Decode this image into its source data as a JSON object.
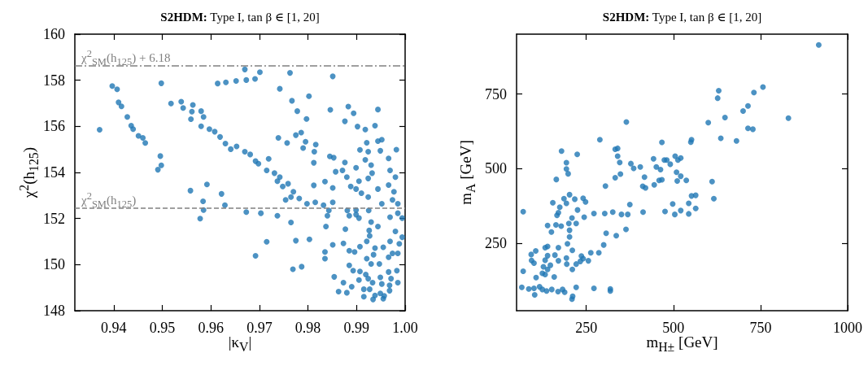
{
  "chart_data": [
    {
      "type": "scatter",
      "title": "S2HDM: Type I,  tan β ∈ [1, 20]",
      "xlabel": "|κ$_{V}$|",
      "ylabel": "χ$^{2}$(h$_{125}$)",
      "xlim": [
        0.932,
        1.0
      ],
      "ylim": [
        148,
        160
      ],
      "xticks": [
        0.94,
        0.95,
        0.96,
        0.97,
        0.98,
        0.99,
        {
          "value": 1.0,
          "label": "1.00"
        }
      ],
      "yticks": [
        148,
        150,
        152,
        154,
        156,
        158,
        160
      ],
      "marker": "circle",
      "ref_lines": [
        {
          "axis": "y",
          "value": 158.63,
          "label": "χ$^{2}$$_{SM}$(h$_{125}$) + 6.18",
          "color": "#808080",
          "line_style": "dashdot"
        },
        {
          "axis": "y",
          "value": 152.45,
          "label": "χ$^{2}$$_{SM}$(h$_{125}$)",
          "color": "#808080",
          "line_style": "dashed"
        }
      ],
      "series": [
        {
          "color": "#1f77b4",
          "x": [
            0.9371,
            0.9397,
            0.9407,
            0.941,
            0.9416,
            0.9428,
            0.9436,
            0.944,
            0.9451,
            0.946,
            0.9465,
            0.9496,
            0.9491,
            0.9498,
            0.9498,
            0.9558,
            0.9578,
            0.9584,
            0.9592,
            0.9585,
            0.9622,
            0.9629,
            0.9518,
            0.9539,
            0.9543,
            0.9559,
            0.9563,
            0.9561,
            0.958,
            0.9585,
            0.958,
            0.9597,
            0.9608,
            0.9619,
            0.963,
            0.9641,
            0.9653,
            0.967,
            0.9681,
            0.9692,
            0.9698,
            0.9715,
            0.9731,
            0.9742,
            0.9737,
            0.9748,
            0.9759,
            0.977,
            0.9782,
            0.9798,
            0.9815,
            0.9832,
            0.9843,
            0.9754,
            0.9765,
            0.9614,
            0.9631,
            0.9652,
            0.967,
            0.9673,
            0.9691,
            0.9701,
            0.9763,
            0.9851,
            0.9742,
            0.9767,
            0.9802,
            0.9778,
            0.9797,
            0.9786,
            0.9775,
            0.9739,
            0.9757,
            0.9795,
            0.979,
            0.9816,
            0.9813,
            0.9846,
            0.9845,
            0.9853,
            0.9812,
            0.9719,
            0.9883,
            0.9894,
            0.9876,
            0.9902,
            0.9918,
            0.9944,
            0.9938,
            0.9921,
            0.9944,
            0.9952,
            0.9907,
            0.9924,
            0.9949,
            0.9982,
            0.9918,
            0.993,
            0.9932,
            0.9924,
            0.9966,
            0.9969,
            0.9876,
            0.9899,
            0.9857,
            0.9871,
            0.988,
            0.9835,
            0.9851,
            0.9812,
            0.9905,
            0.9888,
            0.9899,
            0.991,
            0.9924,
            0.9944,
            0.9966,
            0.998,
            0.9977,
            0.9974,
            0.9985,
            0.9985,
            0.9952,
            0.9925,
            0.9899,
            0.9881,
            0.9851,
            0.984,
            0.9837,
            0.9885,
            0.9899,
            0.9905,
            0.9969,
            0.9994,
            0.993,
            0.9944,
            0.9926,
            0.998,
            0.9877,
            0.9927,
            0.9921,
            0.9969,
            0.9988,
            0.9873,
            0.9851,
            0.9835,
            0.9835,
            0.9885,
            0.9896,
            0.9907,
            0.9921,
            0.9938,
            0.9955,
            0.9974,
            0.9985,
            0.9966,
            0.9935,
            0.9885,
            0.9893,
            0.9907,
            0.993,
            0.9947,
            0.9983,
            0.9966,
            0.9919,
            0.9924,
            0.9949,
            0.9971,
            0.9933,
            0.9952,
            0.9985,
            0.9968,
            0.9873,
            0.9854,
            0.989,
            0.9905,
            0.9927,
            0.9949,
            0.9938,
            0.9957,
            0.9968,
            0.9915,
            0.9934,
            0.9955,
            0.9863,
            0.988,
            0.9915,
            0.9994,
            0.9803,
            0.9787,
            0.9769,
            0.9775,
            0.9692,
            0.9715,
            0.9737,
            0.9765,
            0.9673,
            0.9703
          ],
          "values": [
            155.85,
            157.75,
            157.61,
            157.04,
            156.87,
            156.41,
            156.03,
            155.88,
            155.59,
            155.5,
            155.28,
            154.71,
            154.12,
            154.31,
            157.87,
            153.21,
            152.0,
            152.75,
            153.48,
            152.37,
            153.07,
            152.58,
            156.99,
            157.07,
            156.8,
            156.31,
            156.93,
            156.64,
            156.66,
            156.41,
            156.0,
            155.88,
            155.77,
            155.54,
            155.25,
            155.01,
            155.13,
            154.9,
            154.78,
            154.49,
            154.38,
            154.09,
            153.97,
            153.8,
            153.62,
            153.39,
            153.51,
            153.16,
            152.87,
            152.64,
            152.7,
            152.58,
            152.35,
            152.81,
            152.93,
            157.86,
            157.91,
            157.97,
            158.47,
            158.01,
            158.06,
            158.35,
            158.32,
            158.17,
            157.63,
            157.11,
            157.31,
            156.66,
            156.32,
            155.73,
            155.62,
            155.5,
            155.28,
            155.33,
            155.06,
            155.21,
            154.9,
            156.72,
            154.7,
            154.64,
            154.42,
            154.59,
            156.86,
            156.57,
            156.22,
            155.99,
            155.86,
            156.73,
            156.03,
            155.29,
            155.36,
            155.42,
            154.98,
            154.9,
            154.94,
            154.99,
            154.55,
            154.32,
            153.97,
            153.74,
            154.61,
            154.09,
            154.43,
            154.2,
            154.03,
            154.09,
            153.8,
            153.6,
            153.33,
            153.44,
            153.62,
            153.39,
            153.28,
            153.1,
            152.93,
            153.28,
            153.45,
            153.8,
            153.16,
            152.81,
            152.64,
            152.23,
            152.64,
            152.35,
            152.37,
            152.35,
            152.7,
            152.12,
            151.65,
            152.12,
            152.17,
            152.02,
            152.06,
            152.02,
            151.85,
            151.65,
            151.48,
            151.44,
            151.54,
            151.25,
            151.01,
            151.01,
            150.9,
            150.92,
            150.86,
            150.55,
            150.26,
            150.6,
            150.55,
            150.78,
            150.26,
            150.72,
            150.75,
            150.49,
            150.49,
            150.32,
            150.43,
            149.97,
            149.74,
            149.7,
            150.03,
            150.03,
            149.74,
            149.68,
            149.57,
            149.39,
            149.45,
            149.39,
            149.22,
            149.16,
            149.22,
            149.1,
            149.22,
            149.47,
            149.04,
            149.33,
            148.93,
            148.75,
            148.66,
            148.64,
            148.87,
            148.61,
            148.49,
            148.52,
            148.83,
            148.78,
            148.93,
            151.19,
            151.1,
            149.91,
            149.8,
            151.04,
            150.38,
            150.99,
            152.12,
            151.83,
            152.28,
            152.23
          ]
        }
      ]
    },
    {
      "type": "scatter",
      "title": "S2HDM: Type I,  tan β ∈ [1, 20]",
      "xlabel": "m$_{H±}$ [GeV]",
      "ylabel": "m$_{A}$ [GeV]",
      "xlim": [
        50,
        1000
      ],
      "ylim": [
        25,
        950
      ],
      "xticks": [
        250,
        500,
        750,
        1000
      ],
      "yticks": [
        250,
        500,
        750
      ],
      "marker": "circle",
      "series": [
        {
          "color": "#1f77b4",
          "x": [
            917,
            630,
            627,
            731,
            757,
            714,
            700,
            648,
            600,
            830,
            714,
            728,
            636,
            681,
            552,
            550,
            467,
            365,
            289,
            333,
            340,
            340,
            346,
            378,
            386,
            405,
            443,
            451,
            463,
            474,
            481,
            491,
            505,
            513,
            521,
            509,
            521,
            511,
            537,
            459,
            467,
            611,
            616,
            417,
            412,
            420,
            445,
            305,
            333,
            348,
            179,
            224,
            193,
            193,
            198,
            164,
            154,
            186,
            202,
            217,
            241,
            248,
            174,
            170,
            166,
            193,
            225,
            209,
            200,
            163,
            139,
            150,
            178,
            202,
            202,
            221,
            244,
            196,
            210,
            170,
            139,
            132,
            105,
            92,
            93,
            100,
            69,
            69,
            139,
            160,
            170,
            132,
            127,
            139,
            124,
            147,
            132,
            106,
            158,
            193,
            194,
            210,
            221,
            233,
            241,
            256,
            236,
            263,
            300,
            286,
            307,
            336,
            364,
            272,
            303,
            326,
            351,
            369,
            375,
            413,
            476,
            498,
            504,
            521,
            544,
            544,
            552,
            564,
            564,
            65,
            85,
            100,
            116,
            124,
            102,
            136,
            151,
            169,
            182,
            188,
            209,
            211,
            221,
            272,
            319,
            319
          ],
          "values": [
            914,
            761,
            736,
            755,
            773,
            710,
            693,
            671,
            654,
            669,
            635,
            632,
            602,
            593,
            597,
            589,
            588,
            656,
            597,
            565,
            568,
            542,
            521,
            517,
            501,
            506,
            533,
            506,
            497,
            529,
            529,
            515,
            542,
            529,
            536,
            488,
            475,
            459,
            461,
            461,
            463,
            457,
            400,
            472,
            441,
            436,
            446,
            442,
            470,
            482,
            559,
            548,
            520,
            499,
            483,
            464,
            386,
            400,
            413,
            398,
            401,
            389,
            371,
            353,
            344,
            384,
            362,
            335,
            317,
            312,
            310,
            288,
            308,
            294,
            272,
            317,
            338,
            249,
            227,
            236,
            240,
            236,
            225,
            213,
            193,
            184,
            356,
            157,
            209,
            211,
            192,
            194,
            172,
            163,
            150,
            177,
            146,
            136,
            138,
            201,
            181,
            163,
            181,
            190,
            199,
            192,
            208,
            219,
            245,
            219,
            284,
            276,
            297,
            350,
            350,
            355,
            347,
            347,
            380,
            355,
            357,
            382,
            347,
            360,
            349,
            384,
            409,
            411,
            367,
            103,
            98,
            100,
            105,
            96,
            78,
            91,
            96,
            89,
            96,
            87,
            64,
            73,
            103,
            100,
            98,
            91
          ]
        }
      ]
    }
  ]
}
